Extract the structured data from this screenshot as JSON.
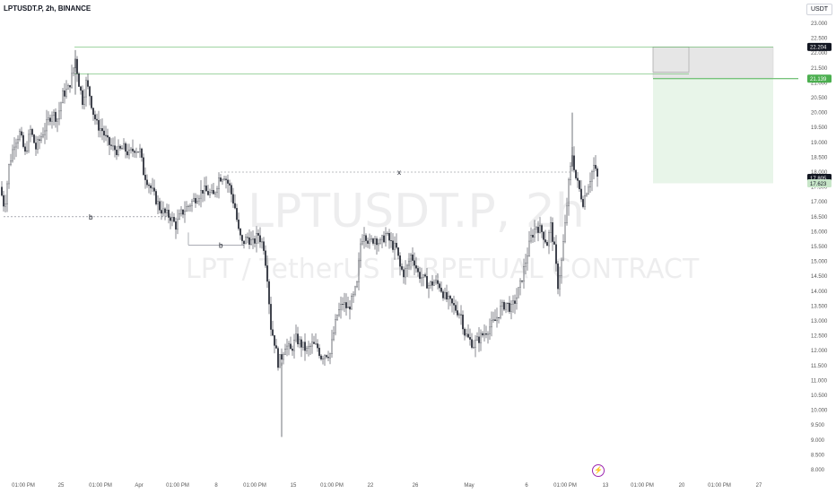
{
  "header": {
    "title": "LPTUSDT.P, 2h, BINANCE"
  },
  "watermark": {
    "symbol": "LPTUSDT.P, 2h",
    "description": "LPT / TetherUS PERPETUAL CONTRACT"
  },
  "currency_button": "USDT",
  "alert_icon": "lightning-icon",
  "colors": {
    "candle": "#131722",
    "zone_line": "#4caf50",
    "green_zone": "#e8f5e9",
    "grey_zone": "#e6e6e6",
    "last_price_bg": "#131722",
    "target_bg": "#4caf50"
  },
  "chart_data": {
    "type": "candlestick",
    "title": "",
    "xlabel": "",
    "ylabel": "",
    "ylim": [
      8.0,
      23.0
    ],
    "y_ticks": [
      "23.000",
      "22.500",
      "22.000",
      "21.500",
      "21.000",
      "20.500",
      "20.000",
      "19.500",
      "19.000",
      "18.500",
      "18.000",
      "17.500",
      "17.000",
      "16.500",
      "16.000",
      "15.500",
      "15.000",
      "14.500",
      "14.000",
      "13.500",
      "13.000",
      "12.500",
      "12.000",
      "11.500",
      "11.000",
      "10.500",
      "10.000",
      "9.500",
      "9.000",
      "8.500",
      "8.000"
    ],
    "x_ticks": [
      "01:00 PM",
      "25",
      "01:00 PM",
      "Apr",
      "01:00 PM",
      "8",
      "01:00 PM",
      "15",
      "01:00 PM",
      "22",
      "26",
      "May",
      "6",
      "01:00 PM",
      "13",
      "01:00 PM",
      "20",
      "01:00 PM",
      "27"
    ],
    "price_path": [
      [
        0,
        17.5
      ],
      [
        5,
        16.8
      ],
      [
        10,
        18.2
      ],
      [
        16,
        19.0
      ],
      [
        22,
        19.3
      ],
      [
        28,
        18.6
      ],
      [
        34,
        19.4
      ],
      [
        40,
        18.8
      ],
      [
        46,
        19.2
      ],
      [
        52,
        19.6
      ],
      [
        58,
        20.0
      ],
      [
        64,
        19.8
      ],
      [
        70,
        20.6
      ],
      [
        76,
        20.8
      ],
      [
        80,
        21.2
      ],
      [
        84,
        21.8
      ],
      [
        88,
        21.0
      ],
      [
        92,
        20.4
      ],
      [
        96,
        21.0
      ],
      [
        100,
        20.6
      ],
      [
        104,
        20.0
      ],
      [
        108,
        19.6
      ],
      [
        114,
        19.4
      ],
      [
        120,
        19.0
      ],
      [
        126,
        18.8
      ],
      [
        132,
        18.7
      ],
      [
        138,
        18.8
      ],
      [
        144,
        18.6
      ],
      [
        150,
        18.8
      ],
      [
        156,
        18.7
      ],
      [
        160,
        18.0
      ],
      [
        166,
        17.6
      ],
      [
        172,
        17.2
      ],
      [
        178,
        16.8
      ],
      [
        184,
        16.6
      ],
      [
        190,
        16.5
      ],
      [
        196,
        16.2
      ],
      [
        202,
        16.6
      ],
      [
        208,
        16.8
      ],
      [
        214,
        17.0
      ],
      [
        220,
        17.2
      ],
      [
        226,
        17.4
      ],
      [
        232,
        17.3
      ],
      [
        238,
        17.2
      ],
      [
        244,
        17.8
      ],
      [
        250,
        17.9
      ],
      [
        256,
        17.5
      ],
      [
        262,
        16.8
      ],
      [
        266,
        16.0
      ],
      [
        270,
        15.6
      ],
      [
        276,
        15.8
      ],
      [
        282,
        15.6
      ],
      [
        288,
        15.9
      ],
      [
        294,
        15.5
      ],
      [
        298,
        14.5
      ],
      [
        302,
        12.8
      ],
      [
        306,
        12.3
      ],
      [
        310,
        11.6
      ],
      [
        314,
        11.8
      ],
      [
        318,
        12.2
      ],
      [
        324,
        12.0
      ],
      [
        330,
        12.4
      ],
      [
        336,
        12.2
      ],
      [
        342,
        12.0
      ],
      [
        348,
        12.2
      ],
      [
        354,
        12.1
      ],
      [
        358,
        11.8
      ],
      [
        362,
        11.9
      ],
      [
        368,
        11.9
      ],
      [
        372,
        12.6
      ],
      [
        376,
        13.2
      ],
      [
        382,
        13.6
      ],
      [
        388,
        13.4
      ],
      [
        394,
        13.8
      ],
      [
        398,
        14.2
      ],
      [
        402,
        15.6
      ],
      [
        406,
        16.0
      ],
      [
        412,
        15.6
      ],
      [
        418,
        15.8
      ],
      [
        424,
        15.6
      ],
      [
        430,
        15.9
      ],
      [
        436,
        15.6
      ],
      [
        442,
        15.4
      ],
      [
        446,
        14.8
      ],
      [
        450,
        14.6
      ],
      [
        454,
        14.8
      ],
      [
        458,
        15.2
      ],
      [
        462,
        15.0
      ],
      [
        466,
        14.6
      ],
      [
        472,
        14.4
      ],
      [
        478,
        14.2
      ],
      [
        484,
        14.3
      ],
      [
        490,
        14.2
      ],
      [
        496,
        13.8
      ],
      [
        502,
        13.6
      ],
      [
        508,
        13.4
      ],
      [
        514,
        13.2
      ],
      [
        518,
        12.6
      ],
      [
        522,
        12.4
      ],
      [
        528,
        12.2
      ],
      [
        534,
        12.4
      ],
      [
        540,
        12.6
      ],
      [
        546,
        12.8
      ],
      [
        552,
        13.0
      ],
      [
        558,
        13.4
      ],
      [
        564,
        13.6
      ],
      [
        570,
        13.4
      ],
      [
        576,
        13.8
      ],
      [
        580,
        14.2
      ],
      [
        586,
        15.0
      ],
      [
        592,
        15.8
      ],
      [
        598,
        16.2
      ],
      [
        604,
        16.0
      ],
      [
        610,
        15.6
      ],
      [
        614,
        16.2
      ],
      [
        618,
        15.4
      ],
      [
        622,
        14.2
      ],
      [
        626,
        15.0
      ],
      [
        630,
        16.2
      ],
      [
        634,
        17.6
      ],
      [
        638,
        18.6
      ],
      [
        642,
        17.8
      ],
      [
        646,
        17.4
      ],
      [
        650,
        17.0
      ],
      [
        654,
        17.4
      ],
      [
        658,
        17.8
      ],
      [
        662,
        18.2
      ],
      [
        666,
        17.8
      ]
    ],
    "last_price": 17.805,
    "current_price_labels": [
      "22.204",
      "21.139",
      "17.805",
      "17.623"
    ],
    "zones": [
      {
        "name": "supply-zone",
        "top": 22.204,
        "bottom": 21.3
      },
      {
        "name": "target-zone",
        "top": 21.139,
        "bottom": 17.623
      }
    ],
    "levels": [
      {
        "label": "x",
        "price": 18.0
      },
      {
        "label": "b",
        "price": 16.5
      },
      {
        "label": "b",
        "price": 15.55
      }
    ],
    "extremes": {
      "high": 22.1,
      "low": 9.1,
      "spike_high": 20.0
    }
  }
}
